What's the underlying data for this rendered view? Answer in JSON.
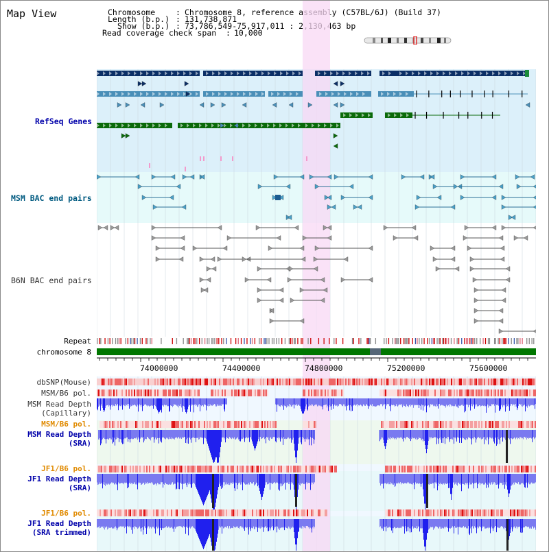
{
  "title": "Map View",
  "info": {
    "chromosome_label": "Chromosome",
    "chromosome_value": "Chromosome 8, reference assembly (C57BL/6J) (Build 37)",
    "length_label": "Length (b.p.)",
    "length_value": "131,738,871",
    "show_label": "Show (b.p.)",
    "show_value": "73,786,549-75,917,011 : 2,130,463 bp",
    "coverage_label": "Read coverage check span",
    "coverage_value": "10,000"
  },
  "tracks": {
    "refseq": "RefSeq Genes",
    "msm_bac": "MSM BAC end pairs",
    "b6n_bac": "B6N BAC end pairs",
    "repeat": "Repeat",
    "chromosome": "chromosome 8",
    "dbsnp": "dbSNP(Mouse)",
    "msm_b6_pol_1": "MSM/B6 pol.",
    "msm_depth_cap_1": "MSM Read Depth",
    "msm_depth_cap_2": "(Capillary)",
    "msm_b6_pol_2": "MSM/B6 pol.",
    "msm_depth_sra_1": "MSM Read Depth",
    "msm_depth_sra_2": "(SRA)",
    "jf1_b6_pol_1": "JF1/B6 pol.",
    "jf1_depth_sra_1": "JF1 Read Depth",
    "jf1_depth_sra_2": "(SRA)",
    "jf1_b6_pol_2": "JF1/B6 pol.",
    "jf1_depth_trim_1": "JF1 Read Depth",
    "jf1_depth_trim_2": "(SRA trimmed)"
  },
  "axis_ticks": [
    "74000000",
    "74400000",
    "74800000",
    "75200000",
    "75600000"
  ],
  "colors": {
    "refseq_bg": "#dcf0fa",
    "msm_bg": "#e6fafa",
    "highlight": "#f8d8f4",
    "navy": "#0b2f66",
    "teal": "#4a8fb8",
    "green": "#0a6a0a",
    "blue_label": "#0000aa",
    "orange_label": "#e08a00",
    "teal_label": "#005a80",
    "depth_blue": "#3333ee"
  }
}
